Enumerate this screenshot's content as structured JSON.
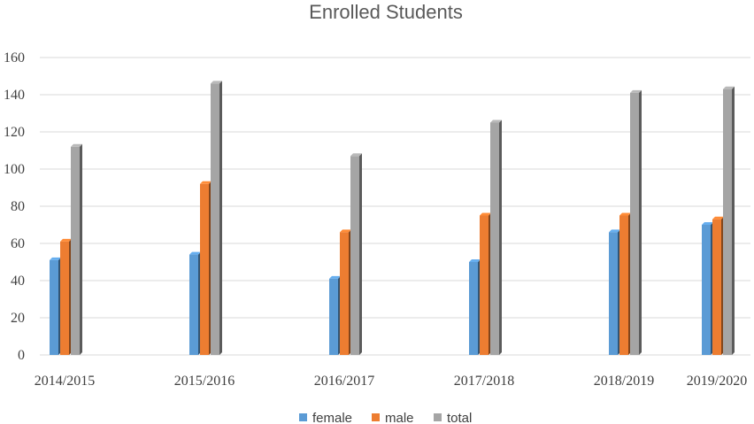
{
  "chart_data": {
    "type": "bar",
    "title": "Enrolled Students",
    "xlabel": "",
    "ylabel": "",
    "categories": [
      "2014/2015",
      "2015/2016",
      "2016/2017",
      "2017/2018",
      "2018/2019",
      "2019/2020"
    ],
    "series": [
      {
        "name": "female",
        "color": "#5B9BD5",
        "values": [
          51,
          54,
          41,
          50,
          66,
          70
        ]
      },
      {
        "name": "male",
        "color": "#ED7D31",
        "values": [
          61,
          92,
          66,
          75,
          75,
          73
        ]
      },
      {
        "name": "total",
        "color": "#A5A5A5",
        "values": [
          112,
          146,
          107,
          125,
          141,
          143
        ]
      }
    ],
    "ylim": [
      0,
      160
    ],
    "yticks": [
      "0",
      "20",
      "40",
      "60",
      "80",
      "100",
      "120",
      "140",
      "160"
    ],
    "grid": true,
    "legend_position": "bottom",
    "bar_style": "3d-column"
  }
}
